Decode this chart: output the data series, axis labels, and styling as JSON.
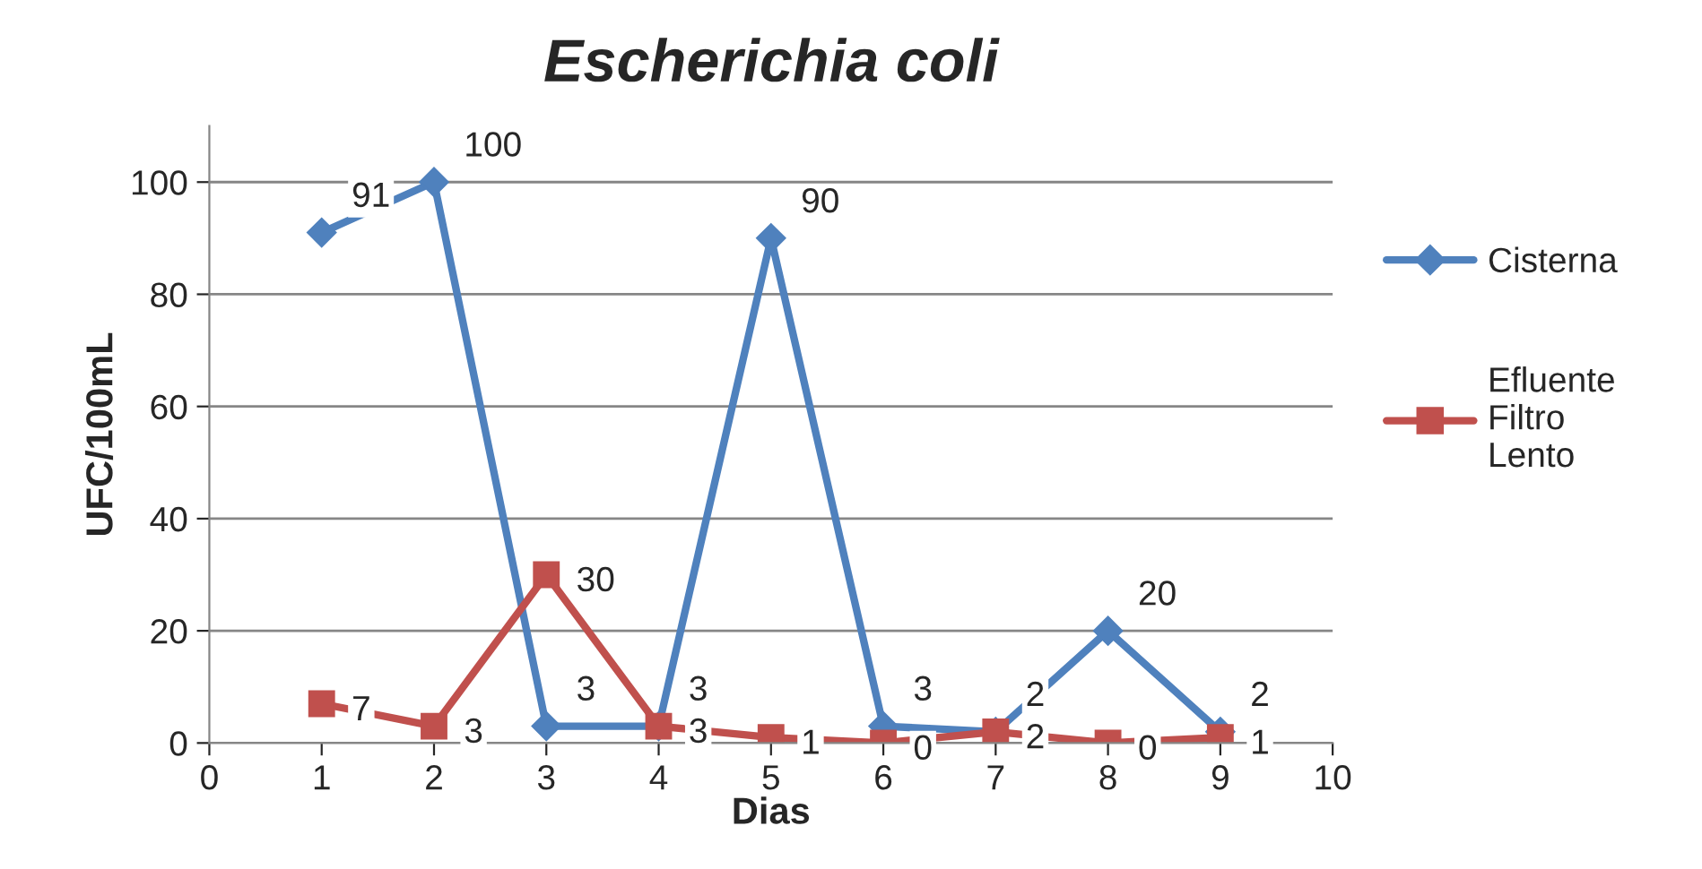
{
  "chart_data": {
    "type": "line",
    "title": "Escherichia coli",
    "xlabel": "Dias",
    "ylabel": "UFC/100mL",
    "x": [
      1,
      2,
      3,
      4,
      5,
      6,
      7,
      8,
      9
    ],
    "series": [
      {
        "name": "Cisterna",
        "color": "#4f81bd",
        "marker": "diamond",
        "values": [
          91,
          100,
          3,
          3,
          90,
          3,
          2,
          20,
          2
        ]
      },
      {
        "name": "Efluente Filtro Lento",
        "color": "#c0504d",
        "marker": "square",
        "values": [
          7,
          3,
          30,
          3,
          1,
          0,
          2,
          0,
          1
        ]
      }
    ],
    "xlim": [
      0,
      10
    ],
    "xticks": [
      0,
      1,
      2,
      3,
      4,
      5,
      6,
      7,
      8,
      9,
      10
    ],
    "ylim": [
      0,
      110
    ],
    "yticks": [
      0,
      20,
      40,
      60,
      80,
      100
    ],
    "grid": "y",
    "legend": "right",
    "data_labels": true,
    "line_style": "solid"
  }
}
